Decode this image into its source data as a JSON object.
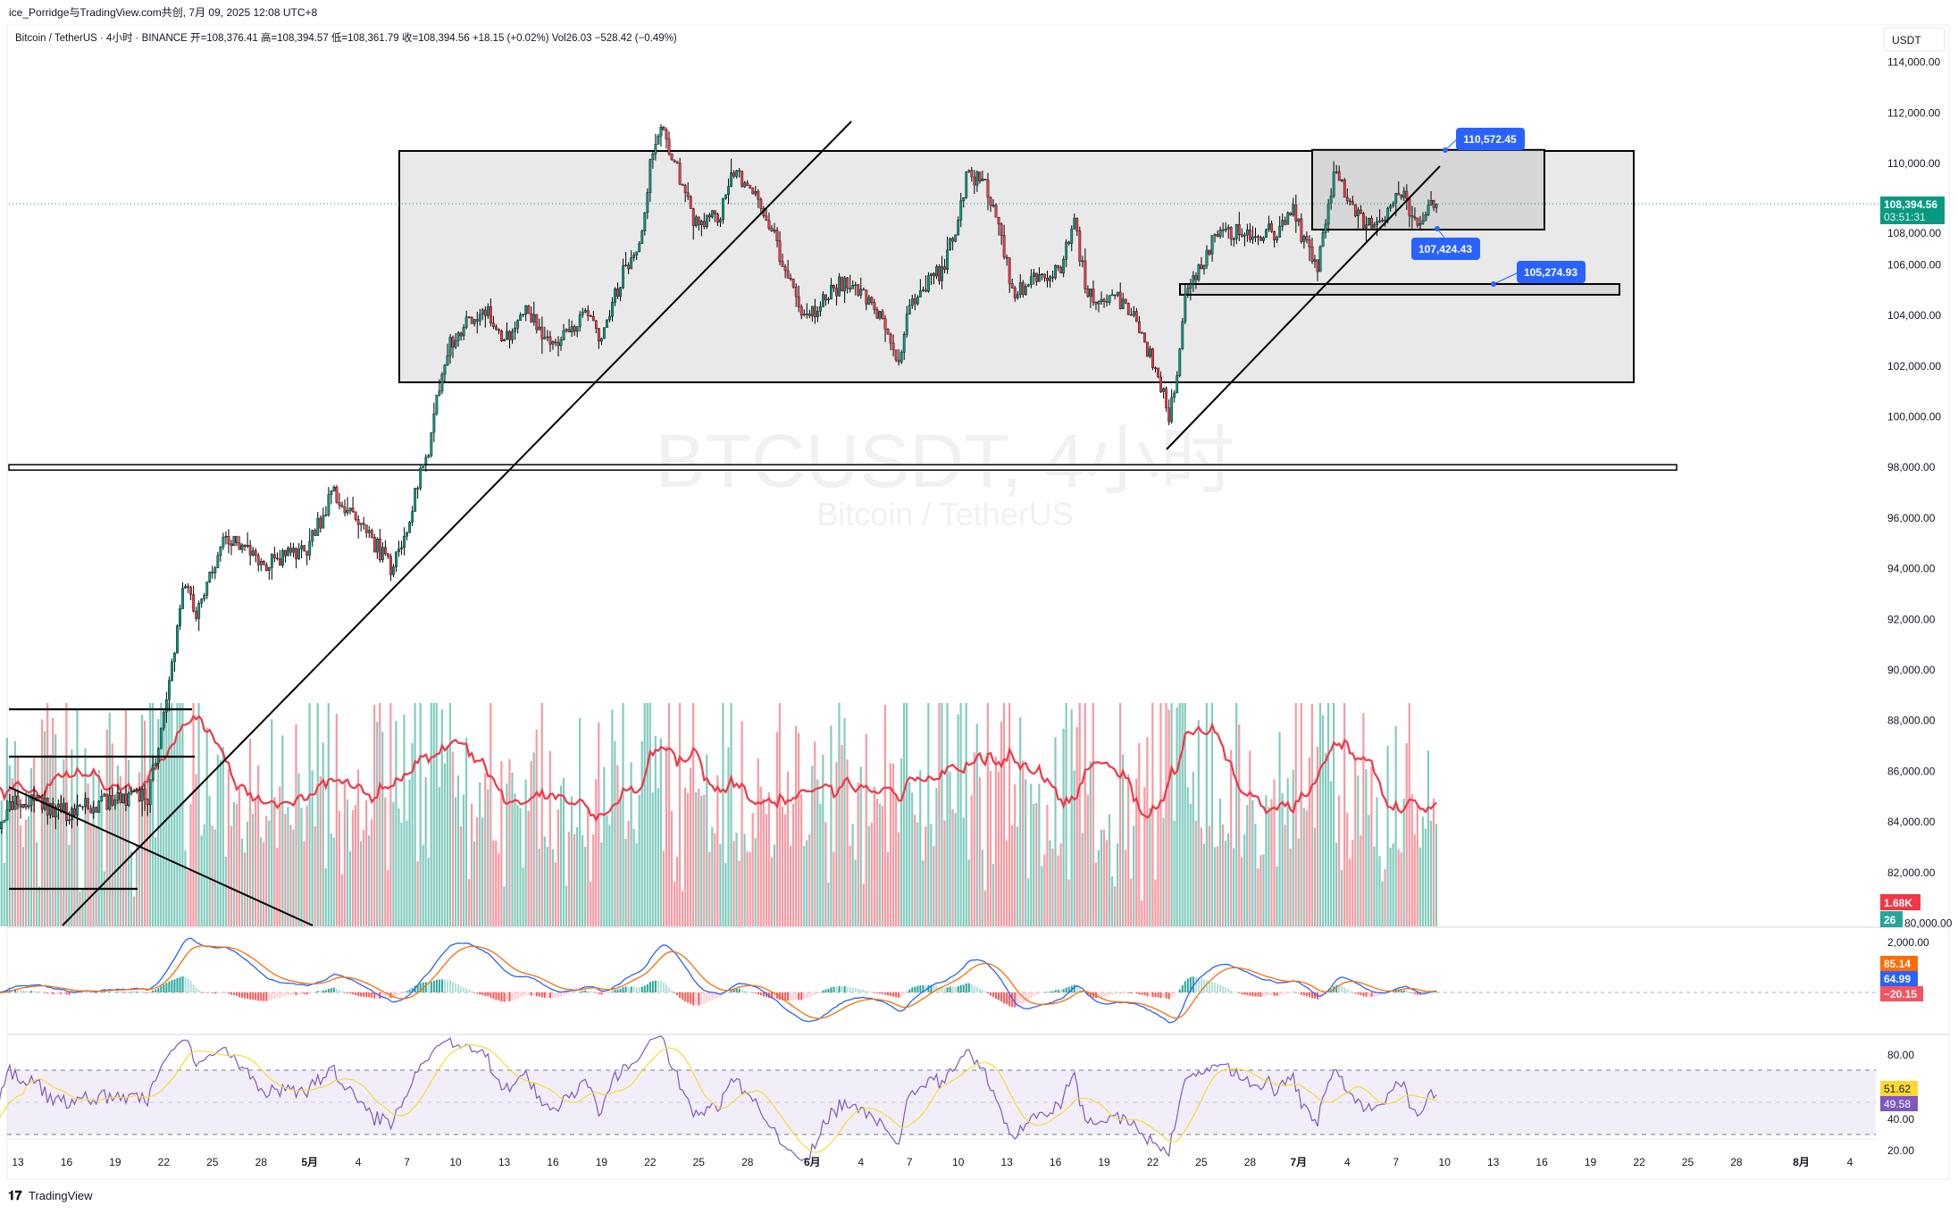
{
  "header": {
    "credit": "ice_Porridge与TradingView.com共创, 7月 09, 2025 12:08 UTC+8",
    "legend": "Bitcoin / TetherUS · 4小时 · BINANCE  开=108,376.41  高=108,394.57  低=108,361.79  收=108,394.56  +18.15 (+0.02%)  Vol26.03  −528.42 (−0.49%)"
  },
  "watermark": {
    "symbol": "BTCUSDT, 4小时",
    "name": "Bitcoin / TetherUS"
  },
  "currency_button": "USDT",
  "price_axis": [
    "114,000.00",
    "112,000.00",
    "110,000.00",
    "108,000.00",
    "106,000.00",
    "104,000.00",
    "102,000.00",
    "100,000.00",
    "98,000.00",
    "96,000.00",
    "94,000.00",
    "92,000.00",
    "90,000.00",
    "88,000.00",
    "86,000.00",
    "84,000.00",
    "82,000.00",
    "80,000.00"
  ],
  "last_price": {
    "price": "108,394.56",
    "countdown": "03:51:31"
  },
  "volume_labels": {
    "ma": "1.68K",
    "vol": "26"
  },
  "macd_axis": "2,000.00",
  "macd_labels": {
    "signal": "85.14",
    "macd": "64.99",
    "hist": "−20.15"
  },
  "rsi_axis": [
    "80.00",
    "40.00",
    "20.00"
  ],
  "rsi_labels": {
    "ma": "51.62",
    "rsi": "49.58"
  },
  "annotations": {
    "range_high": "110,572.45",
    "range_low": "107,424.43",
    "support": "105,274.93"
  },
  "time_axis": [
    {
      "label": "13",
      "day": 0
    },
    {
      "label": "16",
      "day": 3
    },
    {
      "label": "19",
      "day": 6
    },
    {
      "label": "22",
      "day": 9
    },
    {
      "label": "25",
      "day": 12
    },
    {
      "label": "28",
      "day": 15
    },
    {
      "label": "5月",
      "day": 18,
      "bold": true
    },
    {
      "label": "4",
      "day": 21
    },
    {
      "label": "7",
      "day": 24
    },
    {
      "label": "10",
      "day": 27
    },
    {
      "label": "13",
      "day": 30
    },
    {
      "label": "16",
      "day": 33
    },
    {
      "label": "19",
      "day": 36
    },
    {
      "label": "22",
      "day": 39
    },
    {
      "label": "25",
      "day": 42
    },
    {
      "label": "28",
      "day": 45
    },
    {
      "label": "6月",
      "day": 49,
      "bold": true
    },
    {
      "label": "4",
      "day": 52
    },
    {
      "label": "7",
      "day": 55
    },
    {
      "label": "10",
      "day": 58
    },
    {
      "label": "13",
      "day": 61
    },
    {
      "label": "16",
      "day": 64
    },
    {
      "label": "19",
      "day": 67
    },
    {
      "label": "22",
      "day": 70
    },
    {
      "label": "25",
      "day": 73
    },
    {
      "label": "28",
      "day": 76
    },
    {
      "label": "7月",
      "day": 79,
      "bold": true
    },
    {
      "label": "4",
      "day": 82
    },
    {
      "label": "7",
      "day": 85
    },
    {
      "label": "10",
      "day": 88
    },
    {
      "label": "13",
      "day": 91
    },
    {
      "label": "16",
      "day": 94
    },
    {
      "label": "19",
      "day": 97
    },
    {
      "label": "22",
      "day": 100
    },
    {
      "label": "25",
      "day": 103
    },
    {
      "label": "28",
      "day": 106
    },
    {
      "label": "8月",
      "day": 110,
      "bold": true
    },
    {
      "label": "4",
      "day": 113
    }
  ],
  "footer_logo": "TradingView",
  "colors": {
    "up": "#089981",
    "down": "#f23645",
    "annotation": "#2962ff",
    "macd": "#2962ff",
    "signal": "#ff6d00",
    "rsi": "#7e57c2",
    "rsi_ma": "#fdd835"
  },
  "chart_data": {
    "type": "candlestick",
    "title": "Bitcoin / TetherUS · 4小时 · BINANCE",
    "interval": "4h",
    "day_zero": "Apr 13",
    "ylim": [
      80000,
      115000
    ],
    "path_day_price": [
      [
        -2,
        83400
      ],
      [
        0,
        84900
      ],
      [
        3,
        84400
      ],
      [
        6,
        84900
      ],
      [
        8,
        85000
      ],
      [
        9,
        88300
      ],
      [
        9.8,
        91300
      ],
      [
        10.2,
        93700
      ],
      [
        11,
        92300
      ],
      [
        12.8,
        95200
      ],
      [
        15,
        94200
      ],
      [
        17.8,
        94700
      ],
      [
        19.4,
        97000
      ],
      [
        21,
        96000
      ],
      [
        23,
        94000
      ],
      [
        24,
        95700
      ],
      [
        25.5,
        99200
      ],
      [
        26.2,
        102100
      ],
      [
        27,
        103300
      ],
      [
        28.9,
        104300
      ],
      [
        30,
        102800
      ],
      [
        31,
        104300
      ],
      [
        33,
        102900
      ],
      [
        35,
        103900
      ],
      [
        36,
        103200
      ],
      [
        37.4,
        105800
      ],
      [
        38.5,
        107300
      ],
      [
        39.1,
        110500
      ],
      [
        39.7,
        111500
      ],
      [
        40.8,
        109500
      ],
      [
        41.6,
        107800
      ],
      [
        43.2,
        107800
      ],
      [
        44,
        109700
      ],
      [
        45.1,
        109200
      ],
      [
        46.2,
        107800
      ],
      [
        47.4,
        105800
      ],
      [
        48.5,
        103800
      ],
      [
        50.8,
        105300
      ],
      [
        52,
        105000
      ],
      [
        53.9,
        103100
      ],
      [
        54.3,
        102100
      ],
      [
        55,
        104600
      ],
      [
        57,
        105800
      ],
      [
        58,
        107800
      ],
      [
        58.5,
        109500
      ],
      [
        59.7,
        109200
      ],
      [
        60.5,
        107500
      ],
      [
        61.4,
        104800
      ],
      [
        62.4,
        105300
      ],
      [
        64.3,
        105800
      ],
      [
        65.1,
        107800
      ],
      [
        66,
        104800
      ],
      [
        67.8,
        104600
      ],
      [
        68.9,
        103800
      ],
      [
        70.1,
        102100
      ],
      [
        71,
        100100
      ],
      [
        71.5,
        101300
      ],
      [
        72,
        104600
      ],
      [
        72.8,
        105800
      ],
      [
        73.9,
        107300
      ],
      [
        75.8,
        107300
      ],
      [
        77.8,
        107300
      ],
      [
        78.5,
        108300
      ],
      [
        79.3,
        107000
      ],
      [
        80.1,
        105800
      ],
      [
        80.8,
        108000
      ],
      [
        81.2,
        109500
      ],
      [
        82,
        108800
      ],
      [
        82.8,
        107800
      ],
      [
        84.3,
        107800
      ],
      [
        85.1,
        109000
      ],
      [
        86.2,
        107800
      ],
      [
        87.4,
        108394.56
      ]
    ],
    "range_box": [
      101360,
      110494
    ],
    "small_box": [
      107424.43,
      110572.45
    ],
    "support_zone": [
      104950,
      105274.93
    ],
    "horizontal_level": 98000
  }
}
